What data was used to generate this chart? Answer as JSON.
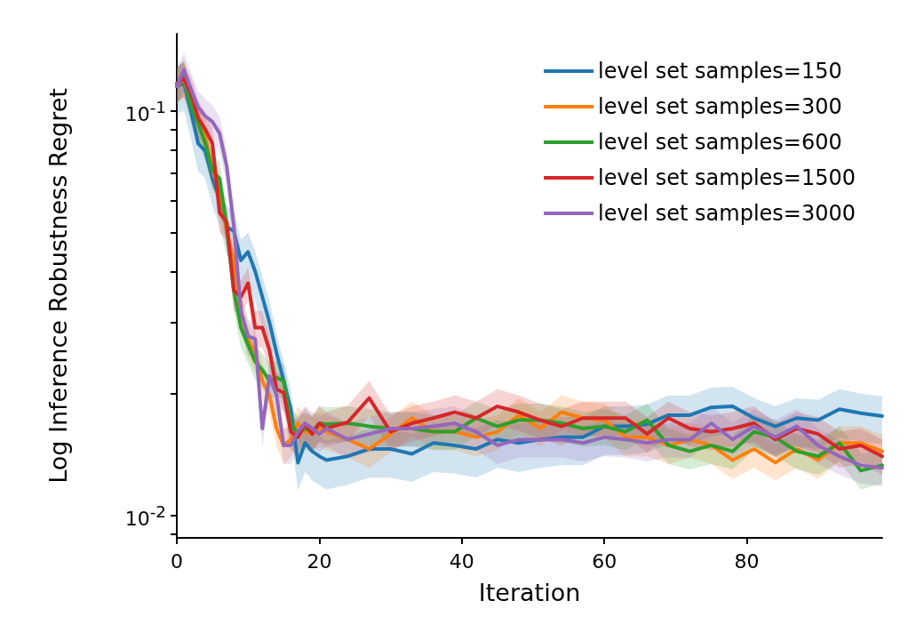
{
  "chart_data": {
    "type": "line",
    "xlabel": "Iteration",
    "ylabel": "Log Inference Robustness Regret",
    "log": "y",
    "legend": "top right",
    "xlim": [
      0,
      99
    ],
    "xticks": [
      0,
      20,
      40,
      60,
      80
    ],
    "ylim": [
      0.0088,
      0.155
    ],
    "yticks": [
      {
        "value": 0.009,
        "label": null
      },
      {
        "value": 0.01,
        "label": "10$^{-2}$"
      },
      {
        "value": 0.02,
        "label": null
      },
      {
        "value": 0.03,
        "label": null
      },
      {
        "value": 0.04,
        "label": null
      },
      {
        "value": 0.05,
        "label": null
      },
      {
        "value": 0.06,
        "label": null
      },
      {
        "value": 0.07,
        "label": null
      },
      {
        "value": 0.08,
        "label": null
      },
      {
        "value": 0.09,
        "label": null
      },
      {
        "value": 0.1,
        "label": "10$^{-1}$"
      }
    ],
    "x": [
      0,
      1,
      2,
      3,
      4,
      5,
      6,
      7,
      8,
      9,
      10,
      11,
      12,
      13,
      14,
      15,
      16,
      17,
      18,
      19,
      20,
      21,
      24,
      27,
      30,
      33,
      36,
      39,
      42,
      45,
      48,
      51,
      54,
      57,
      60,
      63,
      66,
      69,
      72,
      75,
      78,
      81,
      84,
      87,
      90,
      93,
      96,
      99
    ],
    "series": [
      {
        "name": "level set samples=150",
        "color": "#1f77b4",
        "values": [
          0.115,
          0.117,
          0.0995,
          0.083,
          0.0795,
          0.068,
          0.0606,
          0.0516,
          0.0505,
          0.0427,
          0.0448,
          0.0401,
          0.0347,
          0.03,
          0.0252,
          0.0215,
          0.0183,
          0.0135,
          0.0151,
          0.0144,
          0.014,
          0.0137,
          0.014,
          0.0146,
          0.0146,
          0.0142,
          0.0151,
          0.0149,
          0.0146,
          0.0154,
          0.0151,
          0.0154,
          0.0156,
          0.0156,
          0.0166,
          0.0166,
          0.0168,
          0.0177,
          0.0177,
          0.0185,
          0.0186,
          0.0174,
          0.0166,
          0.0174,
          0.0172,
          0.0183,
          0.0179,
          0.0176
        ],
        "lower": [
          0.098,
          0.1,
          0.085,
          0.071,
          0.068,
          0.058,
          0.052,
          0.044,
          0.043,
          0.036,
          0.038,
          0.034,
          0.029,
          0.026,
          0.021,
          0.018,
          0.016,
          0.0115,
          0.0128,
          0.0122,
          0.0119,
          0.0116,
          0.0119,
          0.0124,
          0.0124,
          0.0121,
          0.0128,
          0.0127,
          0.0124,
          0.0131,
          0.0128,
          0.0131,
          0.0133,
          0.0133,
          0.0141,
          0.0141,
          0.0143,
          0.015,
          0.015,
          0.0157,
          0.0158,
          0.0148,
          0.0141,
          0.0148,
          0.0146,
          0.0156,
          0.0152,
          0.015
        ],
        "upper": [
          0.129,
          0.131,
          0.111,
          0.093,
          0.089,
          0.076,
          0.068,
          0.058,
          0.057,
          0.048,
          0.05,
          0.045,
          0.039,
          0.034,
          0.028,
          0.024,
          0.0205,
          0.0151,
          0.0169,
          0.0161,
          0.0157,
          0.0153,
          0.0157,
          0.0164,
          0.0164,
          0.0159,
          0.0169,
          0.0167,
          0.0164,
          0.0172,
          0.0169,
          0.0172,
          0.0175,
          0.0175,
          0.0186,
          0.0186,
          0.0188,
          0.0198,
          0.0198,
          0.0207,
          0.0208,
          0.0195,
          0.0186,
          0.0195,
          0.0193,
          0.0205,
          0.02,
          0.0197
        ]
      },
      {
        "name": "level set samples=300",
        "color": "#ff7f0e",
        "values": [
          0.115,
          0.12,
          0.104,
          0.093,
          0.086,
          0.071,
          0.064,
          0.0505,
          0.0427,
          0.032,
          0.0273,
          0.0252,
          0.0215,
          0.0198,
          0.0164,
          0.0149,
          0.0154,
          0.0169,
          0.0161,
          0.0159,
          0.0164,
          0.0161,
          0.0154,
          0.0146,
          0.0159,
          0.0174,
          0.0161,
          0.0161,
          0.0156,
          0.0161,
          0.0177,
          0.0164,
          0.018,
          0.0174,
          0.0172,
          0.0156,
          0.0156,
          0.0149,
          0.0154,
          0.0149,
          0.0137,
          0.0146,
          0.0135,
          0.0146,
          0.0137,
          0.0151,
          0.0151,
          0.0144
        ],
        "lower": [
          0.104,
          0.108,
          0.094,
          0.084,
          0.077,
          0.064,
          0.058,
          0.045,
          0.038,
          0.029,
          0.0246,
          0.0227,
          0.0194,
          0.0178,
          0.0148,
          0.0134,
          0.0139,
          0.0152,
          0.0145,
          0.0143,
          0.0148,
          0.0145,
          0.0139,
          0.0131,
          0.0143,
          0.0157,
          0.0145,
          0.0145,
          0.014,
          0.0145,
          0.0159,
          0.0148,
          0.0162,
          0.0157,
          0.0155,
          0.014,
          0.014,
          0.0134,
          0.0139,
          0.0134,
          0.0123,
          0.0131,
          0.0122,
          0.0131,
          0.0123,
          0.0136,
          0.0136,
          0.013
        ],
        "upper": [
          0.127,
          0.132,
          0.114,
          0.102,
          0.095,
          0.078,
          0.07,
          0.056,
          0.047,
          0.035,
          0.03,
          0.0277,
          0.0237,
          0.0218,
          0.018,
          0.0164,
          0.0169,
          0.0186,
          0.0177,
          0.0175,
          0.018,
          0.0177,
          0.0169,
          0.0161,
          0.0175,
          0.0191,
          0.0177,
          0.0177,
          0.0172,
          0.0177,
          0.0195,
          0.018,
          0.0198,
          0.0191,
          0.0189,
          0.0172,
          0.0172,
          0.0164,
          0.0169,
          0.0164,
          0.0151,
          0.0161,
          0.0149,
          0.0161,
          0.0151,
          0.0166,
          0.0166,
          0.0158
        ]
      },
      {
        "name": "level set samples=600",
        "color": "#2ca02c",
        "values": [
          0.115,
          0.122,
          0.103,
          0.093,
          0.083,
          0.071,
          0.068,
          0.0516,
          0.036,
          0.0291,
          0.0264,
          0.024,
          0.0229,
          0.0215,
          0.0219,
          0.0215,
          0.0169,
          0.0159,
          0.0164,
          0.0161,
          0.0169,
          0.0168,
          0.0169,
          0.0166,
          0.0164,
          0.0164,
          0.0161,
          0.0161,
          0.0174,
          0.0166,
          0.0172,
          0.0172,
          0.0169,
          0.0164,
          0.0166,
          0.0161,
          0.0172,
          0.0149,
          0.0144,
          0.0149,
          0.0144,
          0.0161,
          0.0156,
          0.0144,
          0.014,
          0.0151,
          0.0129,
          0.0133
        ],
        "lower": [
          0.104,
          0.11,
          0.093,
          0.084,
          0.075,
          0.064,
          0.061,
          0.046,
          0.032,
          0.026,
          0.0238,
          0.0216,
          0.0206,
          0.0194,
          0.0197,
          0.0194,
          0.0152,
          0.0143,
          0.0148,
          0.0145,
          0.0152,
          0.0151,
          0.0152,
          0.0149,
          0.0148,
          0.0148,
          0.0145,
          0.0145,
          0.0157,
          0.0149,
          0.0155,
          0.0155,
          0.0152,
          0.0148,
          0.0149,
          0.0145,
          0.0155,
          0.0134,
          0.013,
          0.0134,
          0.013,
          0.0145,
          0.014,
          0.013,
          0.0126,
          0.0136,
          0.0116,
          0.012
        ],
        "upper": [
          0.127,
          0.134,
          0.113,
          0.102,
          0.091,
          0.078,
          0.075,
          0.057,
          0.04,
          0.032,
          0.029,
          0.0264,
          0.0252,
          0.0237,
          0.0241,
          0.0237,
          0.0186,
          0.0175,
          0.018,
          0.0177,
          0.0186,
          0.0185,
          0.0186,
          0.0183,
          0.018,
          0.018,
          0.0177,
          0.0177,
          0.0191,
          0.0183,
          0.0189,
          0.0189,
          0.0186,
          0.018,
          0.0183,
          0.0177,
          0.0189,
          0.0164,
          0.0158,
          0.0164,
          0.0158,
          0.0177,
          0.0172,
          0.0158,
          0.0154,
          0.0166,
          0.0142,
          0.0146
        ]
      },
      {
        "name": "level set samples=1500",
        "color": "#d62728",
        "values": [
          0.117,
          0.12,
          0.11,
          0.096,
          0.09,
          0.083,
          0.056,
          0.053,
          0.036,
          0.0347,
          0.0375,
          0.0291,
          0.0291,
          0.0256,
          0.0205,
          0.0201,
          0.0161,
          0.0156,
          0.0168,
          0.0159,
          0.0169,
          0.0164,
          0.017,
          0.0195,
          0.0161,
          0.0169,
          0.0174,
          0.018,
          0.0174,
          0.0186,
          0.018,
          0.0172,
          0.0166,
          0.0174,
          0.0174,
          0.0174,
          0.0159,
          0.0174,
          0.0164,
          0.0161,
          0.0164,
          0.0169,
          0.0154,
          0.0164,
          0.0159,
          0.0146,
          0.0149,
          0.014
        ],
        "lower": [
          0.105,
          0.108,
          0.099,
          0.086,
          0.081,
          0.075,
          0.05,
          0.048,
          0.032,
          0.031,
          0.034,
          0.026,
          0.026,
          0.023,
          0.0185,
          0.0181,
          0.0145,
          0.014,
          0.0151,
          0.0143,
          0.0152,
          0.0148,
          0.0153,
          0.0176,
          0.0145,
          0.0152,
          0.0157,
          0.0162,
          0.0157,
          0.0167,
          0.0162,
          0.0155,
          0.0149,
          0.0157,
          0.0157,
          0.0157,
          0.0143,
          0.0157,
          0.0148,
          0.0145,
          0.0148,
          0.0152,
          0.0139,
          0.0148,
          0.0143,
          0.0131,
          0.0134,
          0.0126
        ],
        "upper": [
          0.129,
          0.132,
          0.121,
          0.106,
          0.099,
          0.091,
          0.062,
          0.058,
          0.04,
          0.038,
          0.041,
          0.032,
          0.032,
          0.028,
          0.0226,
          0.0221,
          0.0177,
          0.0172,
          0.0185,
          0.0175,
          0.0186,
          0.018,
          0.0187,
          0.0215,
          0.0177,
          0.0186,
          0.0191,
          0.0198,
          0.0191,
          0.0205,
          0.0198,
          0.0189,
          0.0183,
          0.0191,
          0.0191,
          0.0191,
          0.0175,
          0.0191,
          0.018,
          0.0177,
          0.018,
          0.0186,
          0.0169,
          0.018,
          0.0175,
          0.0161,
          0.0164,
          0.0154
        ]
      },
      {
        "name": "level set samples=3000",
        "color": "#9467bd",
        "values": [
          0.115,
          0.126,
          0.113,
          0.102,
          0.097,
          0.094,
          0.088,
          0.073,
          0.052,
          0.032,
          0.0277,
          0.0273,
          0.0164,
          0.0221,
          0.0198,
          0.0149,
          0.0149,
          0.0161,
          0.0169,
          0.0164,
          0.0159,
          0.0164,
          0.0154,
          0.0159,
          0.0164,
          0.0164,
          0.0166,
          0.0169,
          0.0161,
          0.0149,
          0.0154,
          0.0154,
          0.0154,
          0.0151,
          0.0156,
          0.0154,
          0.0151,
          0.0154,
          0.0154,
          0.0169,
          0.0154,
          0.0166,
          0.0156,
          0.0166,
          0.0149,
          0.014,
          0.0133,
          0.0131
        ],
        "lower": [
          0.104,
          0.113,
          0.102,
          0.092,
          0.087,
          0.085,
          0.079,
          0.066,
          0.047,
          0.029,
          0.0249,
          0.0246,
          0.0148,
          0.0199,
          0.0178,
          0.0134,
          0.0134,
          0.0145,
          0.0152,
          0.0148,
          0.0143,
          0.0148,
          0.0139,
          0.0143,
          0.0148,
          0.0148,
          0.0149,
          0.0152,
          0.0145,
          0.0134,
          0.0139,
          0.0139,
          0.0139,
          0.0136,
          0.014,
          0.0139,
          0.0136,
          0.0139,
          0.0139,
          0.0152,
          0.0139,
          0.0149,
          0.014,
          0.0149,
          0.0134,
          0.0126,
          0.012,
          0.0118
        ],
        "upper": [
          0.127,
          0.139,
          0.124,
          0.112,
          0.107,
          0.103,
          0.097,
          0.08,
          0.057,
          0.035,
          0.0305,
          0.03,
          0.018,
          0.0243,
          0.0218,
          0.0164,
          0.0164,
          0.0177,
          0.0186,
          0.018,
          0.0175,
          0.018,
          0.0169,
          0.0175,
          0.018,
          0.018,
          0.0183,
          0.0186,
          0.0177,
          0.0164,
          0.0169,
          0.0169,
          0.0169,
          0.0166,
          0.0172,
          0.0169,
          0.0166,
          0.0169,
          0.0169,
          0.0186,
          0.0169,
          0.0183,
          0.0172,
          0.0183,
          0.0164,
          0.0154,
          0.0146,
          0.0144
        ]
      }
    ]
  }
}
